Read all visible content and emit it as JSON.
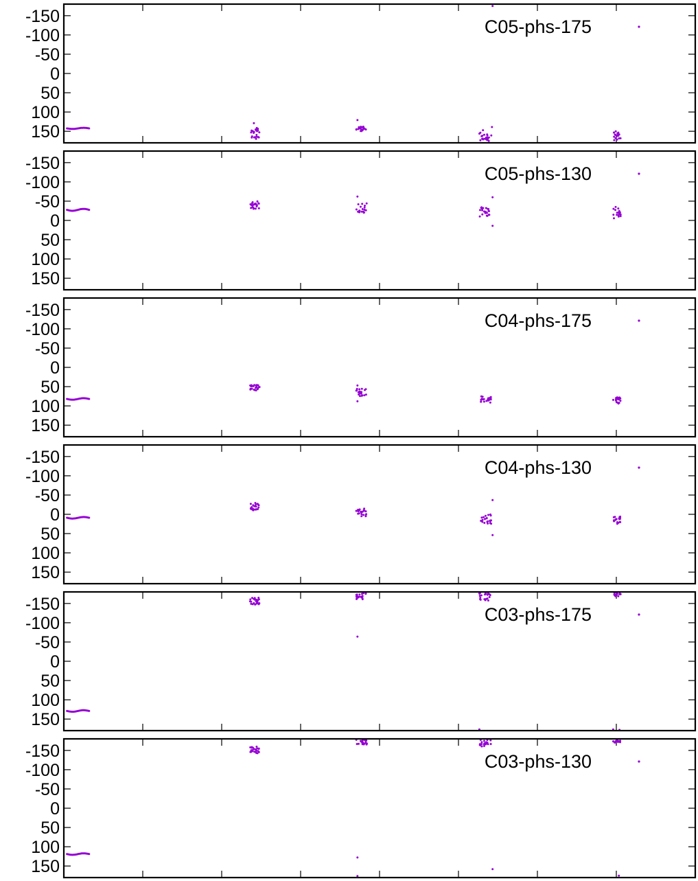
{
  "figure": {
    "type": "scatter",
    "point_color": "#9400d3",
    "frame_color": "#000000"
  },
  "chart_data": [
    {
      "type": "scatter",
      "legend": "C05-phs-175",
      "legend_placement": "top-right",
      "y_ticks": [
        "-150",
        "-100",
        "-50",
        "0",
        "50",
        "100",
        "150"
      ],
      "y_tick_values": [
        -150,
        -100,
        -50,
        0,
        50,
        100,
        150
      ],
      "ylim": [
        -180,
        180
      ],
      "y_inverted": true,
      "xlim": [
        0,
        1000
      ],
      "grid": false,
      "series": [
        {
          "clusters": [
            {
              "x": [
                5,
                40
              ],
              "y": [
                141,
                144
              ],
              "n": 28,
              "kind": "wave"
            },
            {
              "x": [
                295,
                310
              ],
              "y": [
                138,
                170
              ],
              "n": 24,
              "kind": "scatter"
            },
            {
              "x": [
                463,
                480
              ],
              "y": [
                138,
                150
              ],
              "n": 20,
              "kind": "scatter"
            },
            {
              "x": [
                658,
                677
              ],
              "y": [
                147,
                175
              ],
              "n": 22,
              "kind": "scatter"
            },
            {
              "x": [
                870,
                882
              ],
              "y": [
                150,
                176
              ],
              "n": 18,
              "kind": "scatter"
            }
          ],
          "outliers": [
            {
              "x": 465,
              "y": 121
            },
            {
              "x": 679,
              "y": -175
            },
            {
              "x": 678,
              "y": 139
            },
            {
              "x": 301,
              "y": 129
            }
          ]
        }
      ]
    },
    {
      "type": "scatter",
      "legend": "C05-phs-130",
      "legend_placement": "top-right",
      "y_ticks": [
        "-150",
        "-100",
        "-50",
        "0",
        "50",
        "100",
        "150"
      ],
      "y_tick_values": [
        -150,
        -100,
        -50,
        0,
        50,
        100,
        150
      ],
      "ylim": [
        -180,
        180
      ],
      "y_inverted": true,
      "xlim": [
        0,
        1000
      ],
      "grid": false,
      "series": [
        {
          "clusters": [
            {
              "x": [
                5,
                40
              ],
              "y": [
                -30,
                -25
              ],
              "n": 28,
              "kind": "wave"
            },
            {
              "x": [
                295,
                310
              ],
              "y": [
                -50,
                -30
              ],
              "n": 24,
              "kind": "scatter"
            },
            {
              "x": [
                463,
                480
              ],
              "y": [
                -45,
                -20
              ],
              "n": 20,
              "kind": "scatter"
            },
            {
              "x": [
                658,
                677
              ],
              "y": [
                -35,
                -10
              ],
              "n": 22,
              "kind": "scatter"
            },
            {
              "x": [
                870,
                882
              ],
              "y": [
                -35,
                -5
              ],
              "n": 18,
              "kind": "scatter"
            }
          ],
          "outliers": [
            {
              "x": 465,
              "y": -62
            },
            {
              "x": 679,
              "y": -60
            },
            {
              "x": 679,
              "y": 14
            }
          ]
        }
      ]
    },
    {
      "type": "scatter",
      "legend": "C04-phs-175",
      "legend_placement": "top-right",
      "y_ticks": [
        "-150",
        "-100",
        "-50",
        "0",
        "50",
        "100",
        "150"
      ],
      "y_tick_values": [
        -150,
        -100,
        -50,
        0,
        50,
        100,
        150
      ],
      "ylim": [
        -180,
        180
      ],
      "y_inverted": true,
      "xlim": [
        0,
        1000
      ],
      "grid": false,
      "series": [
        {
          "clusters": [
            {
              "x": [
                5,
                40
              ],
              "y": [
                80,
                84
              ],
              "n": 28,
              "kind": "wave"
            },
            {
              "x": [
                295,
                310
              ],
              "y": [
                45,
                60
              ],
              "n": 24,
              "kind": "scatter"
            },
            {
              "x": [
                463,
                480
              ],
              "y": [
                55,
                75
              ],
              "n": 20,
              "kind": "scatter"
            },
            {
              "x": [
                658,
                677
              ],
              "y": [
                75,
                92
              ],
              "n": 22,
              "kind": "scatter"
            },
            {
              "x": [
                870,
                882
              ],
              "y": [
                78,
                95
              ],
              "n": 18,
              "kind": "scatter"
            }
          ],
          "outliers": [
            {
              "x": 465,
              "y": 47
            },
            {
              "x": 465,
              "y": 88
            }
          ]
        }
      ]
    },
    {
      "type": "scatter",
      "legend": "C04-phs-130",
      "legend_placement": "top-right",
      "y_ticks": [
        "-150",
        "-100",
        "-50",
        "0",
        "50",
        "100",
        "150"
      ],
      "y_tick_values": [
        -150,
        -100,
        -50,
        0,
        50,
        100,
        150
      ],
      "ylim": [
        -180,
        180
      ],
      "y_inverted": true,
      "xlim": [
        0,
        1000
      ],
      "grid": false,
      "series": [
        {
          "clusters": [
            {
              "x": [
                5,
                40
              ],
              "y": [
                7,
                11
              ],
              "n": 28,
              "kind": "wave"
            },
            {
              "x": [
                295,
                310
              ],
              "y": [
                -30,
                -10
              ],
              "n": 24,
              "kind": "scatter"
            },
            {
              "x": [
                463,
                480
              ],
              "y": [
                -15,
                5
              ],
              "n": 20,
              "kind": "scatter"
            },
            {
              "x": [
                658,
                677
              ],
              "y": [
                0,
                25
              ],
              "n": 22,
              "kind": "scatter"
            },
            {
              "x": [
                870,
                882
              ],
              "y": [
                5,
                25
              ],
              "n": 18,
              "kind": "scatter"
            }
          ],
          "outliers": [
            {
              "x": 679,
              "y": -37
            },
            {
              "x": 679,
              "y": 54
            }
          ]
        }
      ]
    },
    {
      "type": "scatter",
      "legend": "C03-phs-175",
      "legend_placement": "top-right",
      "y_ticks": [
        "-150",
        "-100",
        "-50",
        "0",
        "50",
        "100",
        "150"
      ],
      "y_tick_values": [
        -150,
        -100,
        -50,
        0,
        50,
        100,
        150
      ],
      "ylim": [
        -180,
        180
      ],
      "y_inverted": true,
      "xlim": [
        0,
        1000
      ],
      "grid": false,
      "series": [
        {
          "clusters": [
            {
              "x": [
                5,
                40
              ],
              "y": [
                127,
                131
              ],
              "n": 28,
              "kind": "wave"
            },
            {
              "x": [
                295,
                310
              ],
              "y": [
                -165,
                -145
              ],
              "n": 24,
              "kind": "scatter"
            },
            {
              "x": [
                463,
                480
              ],
              "y": [
                -178,
                -160
              ],
              "n": 20,
              "kind": "scatter"
            },
            {
              "x": [
                658,
                677
              ],
              "y": [
                -178,
                -155
              ],
              "n": 22,
              "kind": "scatter"
            },
            {
              "x": [
                870,
                882
              ],
              "y": [
                -178,
                -168
              ],
              "n": 18,
              "kind": "scatter"
            }
          ],
          "outliers": [
            {
              "x": 465,
              "y": -64
            },
            {
              "x": 658,
              "y": 177
            },
            {
              "x": 870,
              "y": 177
            },
            {
              "x": 880,
              "y": 178
            }
          ]
        }
      ]
    },
    {
      "type": "scatter",
      "legend": "C03-phs-130",
      "legend_placement": "top-right",
      "y_ticks": [
        "-150",
        "-100",
        "-50",
        "0",
        "50",
        "100",
        "150"
      ],
      "y_tick_values": [
        -150,
        -100,
        -50,
        0,
        50,
        100,
        150
      ],
      "ylim": [
        -180,
        180
      ],
      "y_inverted": true,
      "xlim": [
        0,
        1000
      ],
      "grid": false,
      "series": [
        {
          "clusters": [
            {
              "x": [
                5,
                40
              ],
              "y": [
                117,
                121
              ],
              "n": 28,
              "kind": "wave"
            },
            {
              "x": [
                295,
                310
              ],
              "y": [
                -160,
                -142
              ],
              "n": 24,
              "kind": "scatter"
            },
            {
              "x": [
                463,
                480
              ],
              "y": [
                -178,
                -165
              ],
              "n": 20,
              "kind": "scatter"
            },
            {
              "x": [
                658,
                677
              ],
              "y": [
                -178,
                -160
              ],
              "n": 22,
              "kind": "scatter"
            },
            {
              "x": [
                870,
                882
              ],
              "y": [
                -178,
                -170
              ],
              "n": 18,
              "kind": "scatter"
            }
          ],
          "outliers": [
            {
              "x": 465,
              "y": 128
            },
            {
              "x": 465,
              "y": 176
            },
            {
              "x": 679,
              "y": 158
            },
            {
              "x": 879,
              "y": 175
            }
          ]
        }
      ]
    }
  ]
}
